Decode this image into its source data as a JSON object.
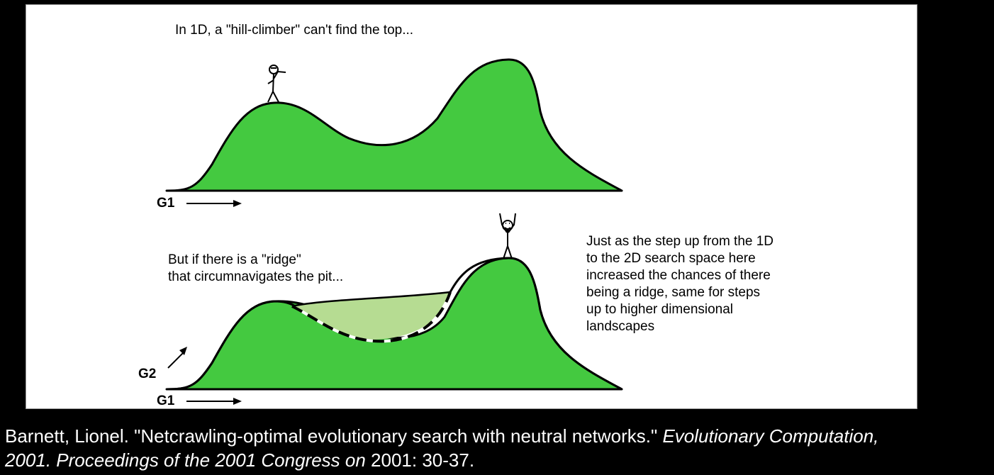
{
  "diagram": {
    "top_caption": "In 1D, a \"hill-climber\" can't find the top...",
    "top_axis_label": "G1",
    "bottom_caption_line1": "But if there is a \"ridge\"",
    "bottom_caption_line2": "that circumnavigates the  pit...",
    "side_note": [
      "Just as the step up from the 1D",
      "to the 2D search space here",
      "increased the chances of there",
      "being a ridge, same for steps",
      "up to higher dimensional",
      "landscapes"
    ],
    "bottom_axis_g2": "G2",
    "bottom_axis_g1": "G1",
    "colors": {
      "hill": "#44c940",
      "ridge": "#b6dc92",
      "background": "#ffffff",
      "frame": "#000000"
    }
  },
  "citation": {
    "part1": "Barnett, Lionel. \"Netcrawling-optimal evolutionary search with neutral networks.\" ",
    "italic1": "Evolutionary Computation,",
    "italic2": "2001. Proceedings of the 2001 Congress on",
    "part2": " 2001: 30-37."
  }
}
